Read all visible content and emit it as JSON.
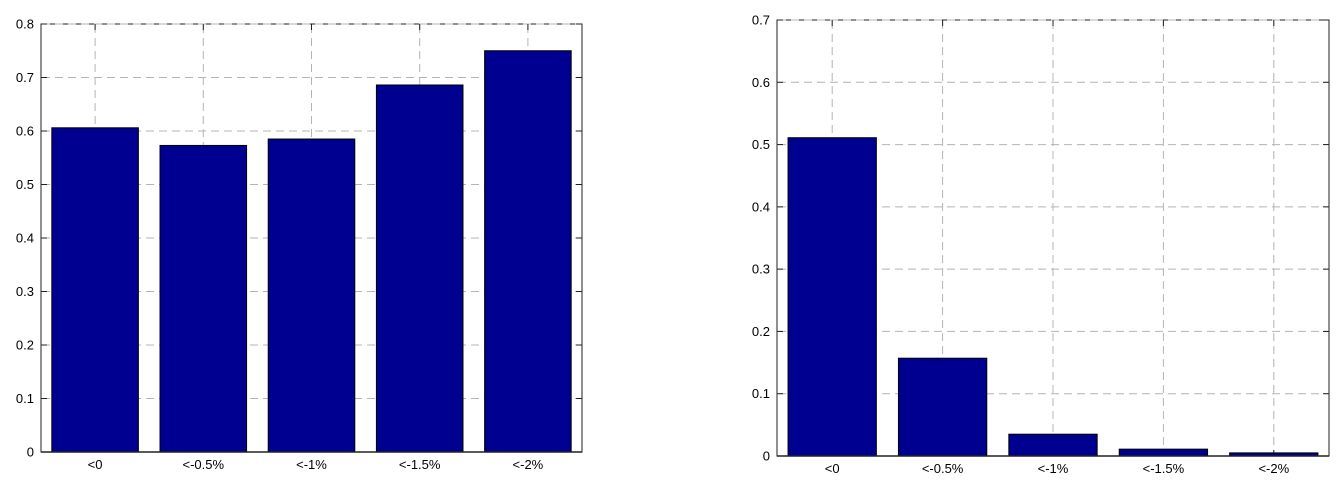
{
  "figure": {
    "background_color": "#ffffff",
    "text_color": "#000000"
  },
  "chart_data": [
    {
      "type": "bar",
      "title": "",
      "xlabel": "",
      "ylabel": "",
      "categories": [
        "<0",
        "<-0.5%",
        "<-1%",
        "<-1.5%",
        "<-2%"
      ],
      "values": [
        0.606,
        0.573,
        0.585,
        0.686,
        0.75
      ],
      "ylim": [
        0,
        0.8
      ],
      "ytick_step": 0.1,
      "ytick_labels": [
        "0",
        "0.1",
        "0.2",
        "0.3",
        "0.4",
        "0.5",
        "0.6",
        "0.7",
        "0.8"
      ],
      "grid": true,
      "legend": "none",
      "bar_color": "#000090",
      "bar_edge_color": "#000000",
      "grid_color": "#b4b4b4",
      "axis_color": "#222222",
      "tick_label_color": "#000000"
    },
    {
      "type": "bar",
      "title": "",
      "xlabel": "",
      "ylabel": "",
      "categories": [
        "<0",
        "<-0.5%",
        "<-1%",
        "<-1.5%",
        "<-2%"
      ],
      "values": [
        0.511,
        0.157,
        0.035,
        0.011,
        0.005
      ],
      "ylim": [
        0,
        0.7
      ],
      "ytick_step": 0.1,
      "ytick_labels": [
        "0",
        "0.1",
        "0.2",
        "0.3",
        "0.4",
        "0.5",
        "0.6",
        "0.7"
      ],
      "grid": true,
      "legend": "none",
      "bar_color": "#000090",
      "bar_edge_color": "#000000",
      "grid_color": "#b4b4b4",
      "axis_color": "#222222",
      "tick_label_color": "#000000"
    }
  ]
}
